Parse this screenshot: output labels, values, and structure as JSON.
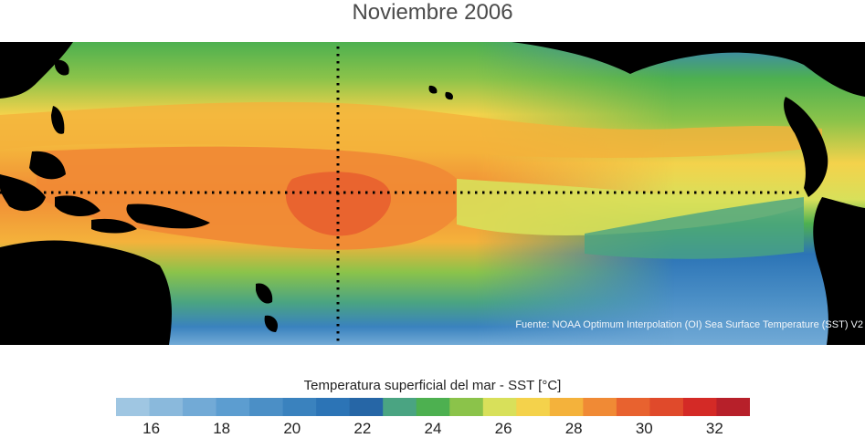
{
  "title": "Noviembre 2006",
  "source_note": "Fuente: NOAA Optimum Interpolation (OI) Sea Surface Temperature (SST) V2",
  "colorbar": {
    "label": "Temperatura superficial del mar - SST  [°C]",
    "min": 15,
    "max": 33,
    "ticks": [
      "16",
      "18",
      "20",
      "22",
      "24",
      "26",
      "28",
      "30",
      "32"
    ],
    "colors": [
      "#9fc6e2",
      "#8ab9dc",
      "#72aad6",
      "#5c9dd0",
      "#4b8fc6",
      "#3a82be",
      "#2c74b6",
      "#2666a6",
      "#4aa482",
      "#4db050",
      "#8bc34a",
      "#d8e05a",
      "#f4d24b",
      "#f4b23b",
      "#f08a35",
      "#e8622f",
      "#e04a2b",
      "#d42a26",
      "#b7202a"
    ]
  },
  "map": {
    "region": "Tropical Pacific Ocean",
    "features": [
      "equator-line",
      "dateline-meridian",
      "land-masses"
    ],
    "colors": {
      "land": "#000000",
      "line": "#000000"
    }
  }
}
